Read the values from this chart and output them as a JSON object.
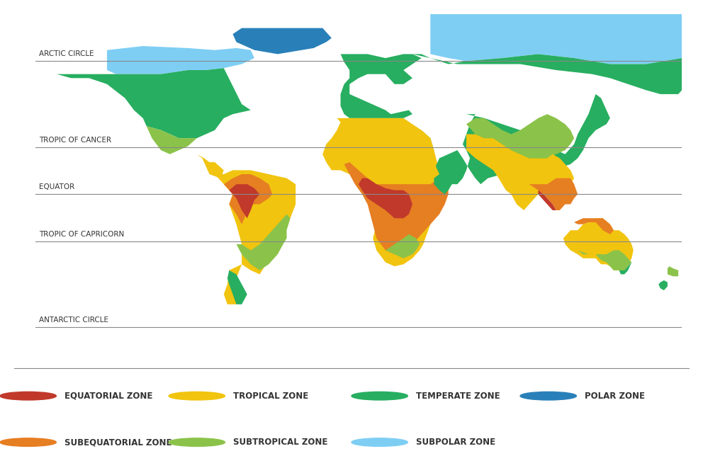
{
  "background_color": "#ffffff",
  "latitude_lines": [
    {
      "lat": 66.5,
      "label": "ARCTIC CIRCLE"
    },
    {
      "lat": 23.5,
      "label": "TROPIC OF CANCER"
    },
    {
      "lat": 0,
      "label": "EQUATOR"
    },
    {
      "lat": -23.5,
      "label": "TROPIC OF CAPRICORN"
    },
    {
      "lat": -66.5,
      "label": "ANTARCTIC CIRCLE"
    }
  ],
  "legend_items": [
    {
      "color": "#c0392b",
      "label": "EQUATORIAL ZONE"
    },
    {
      "color": "#f1c40f",
      "label": "TROPICAL ZONE"
    },
    {
      "color": "#27ae60",
      "label": "TEMPERATE ZONE"
    },
    {
      "color": "#2980b9",
      "label": "POLAR ZONE"
    },
    {
      "color": "#e67e22",
      "label": "SUBEQUATORIAL ZONE"
    },
    {
      "color": "#8bc34a",
      "label": "SUBTROPICAL ZONE"
    },
    {
      "color": "#7ecef4",
      "label": "SUBPOLAR ZONE"
    }
  ],
  "line_color": "#888888",
  "label_color": "#333333",
  "figsize": [
    9.92,
    6.61
  ],
  "dpi": 100,
  "colors": {
    "polar": "#2980b9",
    "subpolar": "#7ecef4",
    "temperate": "#27ae60",
    "subtropical": "#8bc34a",
    "tropical": "#f1c40f",
    "subequatorial": "#e67e22",
    "equatorial": "#c0392b"
  }
}
